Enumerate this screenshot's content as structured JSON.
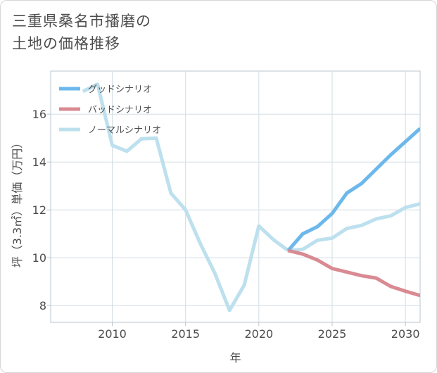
{
  "title_lines": [
    "三重県桑名市播磨の",
    "土地の価格推移"
  ],
  "chart_data": {
    "type": "line",
    "title": "三重県桑名市播磨の土地の価格推移",
    "xlabel": "年",
    "ylabel": "坪（3.3㎡）単価（万円）",
    "xlim": [
      2005.8,
      2031
    ],
    "ylim": [
      7.3,
      17.8
    ],
    "xticks": [
      2010,
      2015,
      2020,
      2025,
      2030
    ],
    "yticks": [
      8,
      10,
      12,
      14,
      16
    ],
    "legend_position": "top-left",
    "series": [
      {
        "name": "グッドシナリオ",
        "color": "#6cb8ec",
        "x": [
          2022,
          2023,
          2024,
          2025,
          2026,
          2027,
          2028,
          2029,
          2030,
          2031
        ],
        "y": [
          10.3,
          11.0,
          11.3,
          11.85,
          12.7,
          13.1,
          13.7,
          14.3,
          14.85,
          15.4
        ]
      },
      {
        "name": "バッドシナリオ",
        "color": "#d98a92",
        "x": [
          2022,
          2023,
          2024,
          2025,
          2026,
          2027,
          2028,
          2029,
          2030,
          2031
        ],
        "y": [
          10.3,
          10.15,
          9.9,
          9.55,
          9.4,
          9.25,
          9.15,
          8.8,
          8.6,
          8.42
        ]
      },
      {
        "name": "ノーマルシナリオ",
        "color": "#bde0ee",
        "x": [
          2008,
          2009,
          2010,
          2011,
          2012,
          2013,
          2014,
          2015,
          2016,
          2017,
          2018,
          2019,
          2020,
          2021,
          2022,
          2023,
          2024,
          2025,
          2026,
          2027,
          2028,
          2029,
          2030,
          2031
        ],
        "y": [
          16.95,
          17.25,
          14.7,
          14.45,
          14.97,
          15.0,
          12.7,
          12.0,
          10.6,
          9.35,
          7.8,
          8.85,
          11.33,
          10.75,
          10.3,
          10.35,
          10.73,
          10.82,
          11.22,
          11.35,
          11.62,
          11.75,
          12.1,
          12.25
        ]
      }
    ]
  }
}
